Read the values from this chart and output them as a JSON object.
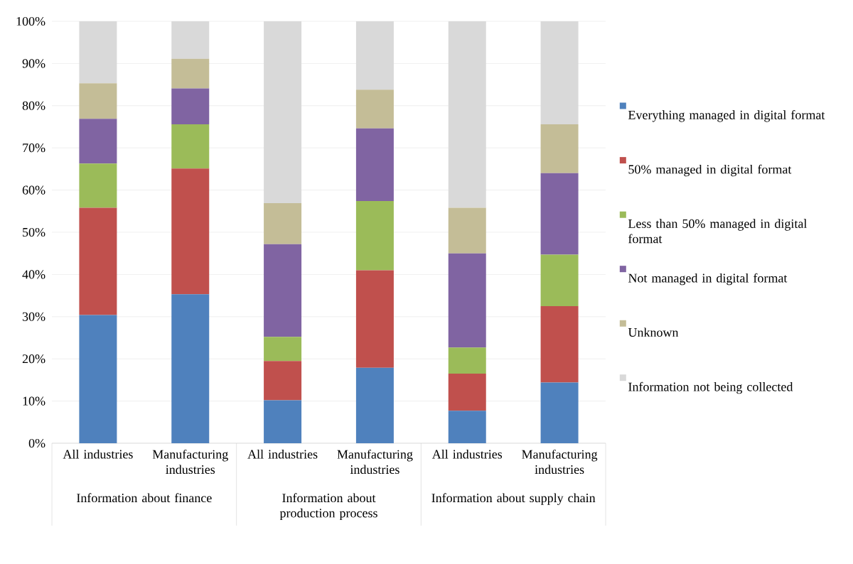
{
  "chart_data": {
    "type": "bar",
    "stacked": true,
    "categories": [
      "All industries",
      "Manufacturing industries",
      "All industries",
      "Manufacturing industries",
      "All industries",
      "Manufacturing industries"
    ],
    "annotations": [
      "Information about finance",
      "Information about production process",
      "Information about supply chain"
    ],
    "ylim": [
      0,
      100
    ],
    "yticks": [
      {
        "value": 0,
        "label": "0%"
      },
      {
        "value": 10,
        "label": "10%"
      },
      {
        "value": 20,
        "label": "20%"
      },
      {
        "value": 30,
        "label": "30%"
      },
      {
        "value": 40,
        "label": "40%"
      },
      {
        "value": 50,
        "label": "50%"
      },
      {
        "value": 60,
        "label": "60%"
      },
      {
        "value": 70,
        "label": "70%"
      },
      {
        "value": 80,
        "label": "80%"
      },
      {
        "value": 90,
        "label": "90%"
      },
      {
        "value": 100,
        "label": "100%"
      }
    ],
    "grid": "y",
    "legend": "right",
    "series": [
      {
        "name": "Everything managed in digital format",
        "color": "#4f81bd",
        "values": [
          30.4,
          35.3,
          10.2,
          17.9,
          7.7,
          14.4
        ]
      },
      {
        "name": "50% managed in digital format",
        "color": "#c0504d",
        "values": [
          25.4,
          29.8,
          9.3,
          23.1,
          8.8,
          18.1
        ]
      },
      {
        "name": "Less than 50% managed in digital format",
        "color": "#9bbb59",
        "values": [
          10.5,
          10.5,
          5.7,
          16.4,
          6.2,
          12.2
        ]
      },
      {
        "name": "Not managed in digital format",
        "color": "#8064a2",
        "values": [
          10.6,
          8.5,
          22.0,
          17.2,
          22.3,
          19.3
        ]
      },
      {
        "name": "Unknown",
        "color": "#c4bd97",
        "values": [
          8.4,
          7.0,
          9.7,
          9.2,
          10.8,
          11.6
        ]
      },
      {
        "name": "Information not being collected",
        "color": "#d9d9d9",
        "values": [
          14.7,
          8.9,
          43.1,
          16.2,
          44.2,
          24.4
        ]
      }
    ]
  }
}
